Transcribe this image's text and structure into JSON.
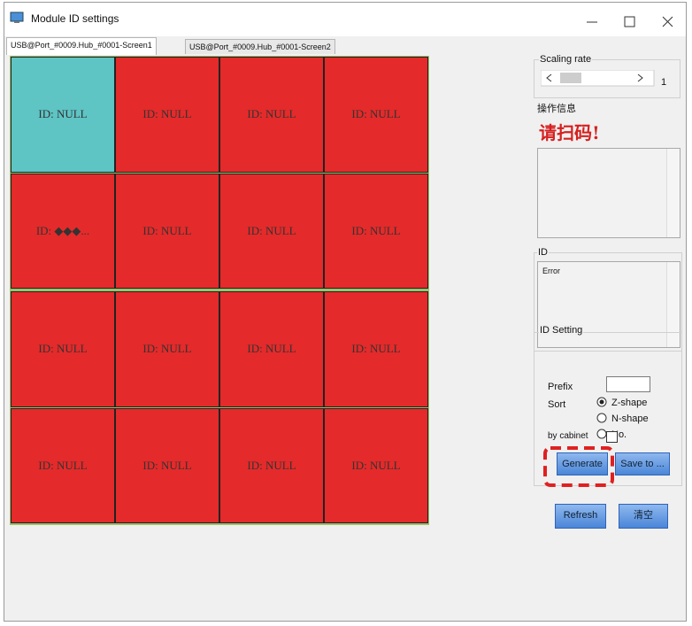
{
  "window": {
    "title": "Module ID settings"
  },
  "tabs": [
    "USB@Port_#0009.Hub_#0001-Screen1",
    "USB@Port_#0009.Hub_#0001-Screen2"
  ],
  "grid": {
    "rows": [
      [
        "ID: NULL",
        "ID: NULL",
        "ID: NULL",
        "ID: NULL"
      ],
      [
        "ID:   ◆◆◆...",
        "ID: NULL",
        "ID: NULL",
        "ID: NULL"
      ],
      [
        "ID: NULL",
        "ID: NULL",
        "ID: NULL",
        "ID: NULL"
      ],
      [
        "ID: NULL",
        "ID: NULL",
        "ID: NULL",
        "ID: NULL"
      ]
    ]
  },
  "panel": {
    "scaling_rate": {
      "label": "Scaling rate",
      "value": "1"
    },
    "operation_info": {
      "label": "操作信息",
      "message": "请扫码!"
    },
    "id": {
      "label": "ID",
      "text": "Error"
    },
    "id_setting": {
      "label": "ID Setting",
      "prefix_label": "Prefix",
      "sort_label": "Sort",
      "sort_options": [
        "Z-shape",
        "N-shape",
        "No."
      ],
      "by_cabinet": "by cabinet",
      "buttons": [
        "Generate",
        "Save to ..."
      ]
    },
    "buttons": [
      "Refresh",
      "清空"
    ]
  }
}
